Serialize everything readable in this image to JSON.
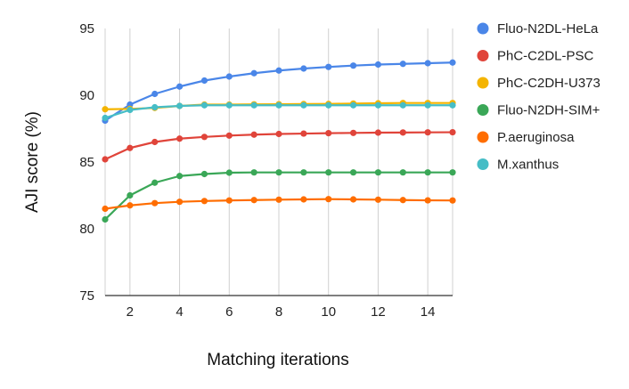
{
  "chart_data": {
    "type": "line",
    "title": "",
    "xlabel": "Matching iterations",
    "ylabel": "AJI score (%)",
    "xlim": [
      1,
      15
    ],
    "ylim": [
      75,
      95
    ],
    "xticks": [
      2,
      4,
      6,
      8,
      10,
      12,
      14
    ],
    "yticks": [
      75,
      80,
      85,
      90,
      95
    ],
    "grid": "vertical",
    "legend_position": "right",
    "x": [
      1,
      2,
      3,
      4,
      5,
      6,
      7,
      8,
      9,
      10,
      11,
      12,
      13,
      14,
      15
    ],
    "series": [
      {
        "name": "Fluo-N2DL-HeLa",
        "color": "#4a86e8",
        "values": [
          88.1,
          89.3,
          90.1,
          90.65,
          91.1,
          91.4,
          91.65,
          91.85,
          92.0,
          92.12,
          92.22,
          92.3,
          92.35,
          92.4,
          92.45
        ]
      },
      {
        "name": "PhC-C2DL-PSC",
        "color": "#e0443a",
        "values": [
          85.2,
          86.05,
          86.5,
          86.75,
          86.88,
          86.98,
          87.05,
          87.1,
          87.13,
          87.16,
          87.18,
          87.2,
          87.21,
          87.22,
          87.23
        ]
      },
      {
        "name": "PhC-C2DH-U373",
        "color": "#f4b400",
        "values": [
          88.95,
          88.98,
          89.05,
          89.2,
          89.3,
          89.3,
          89.32,
          89.33,
          89.34,
          89.35,
          89.38,
          89.4,
          89.42,
          89.42,
          89.42
        ]
      },
      {
        "name": "Fluo-N2DH-SIM+",
        "color": "#3aa757",
        "values": [
          80.7,
          82.5,
          83.45,
          83.95,
          84.1,
          84.2,
          84.22,
          84.22,
          84.22,
          84.22,
          84.22,
          84.22,
          84.22,
          84.22,
          84.22
        ]
      },
      {
        "name": "P.aeruginosa",
        "color": "#ff6d00",
        "values": [
          81.5,
          81.75,
          81.92,
          82.02,
          82.08,
          82.12,
          82.15,
          82.18,
          82.2,
          82.22,
          82.2,
          82.18,
          82.15,
          82.13,
          82.12
        ]
      },
      {
        "name": "M.xanthus",
        "color": "#46bdc6",
        "values": [
          88.3,
          88.9,
          89.1,
          89.2,
          89.25,
          89.25,
          89.25,
          89.25,
          89.25,
          89.25,
          89.25,
          89.25,
          89.25,
          89.25,
          89.25
        ]
      }
    ]
  }
}
